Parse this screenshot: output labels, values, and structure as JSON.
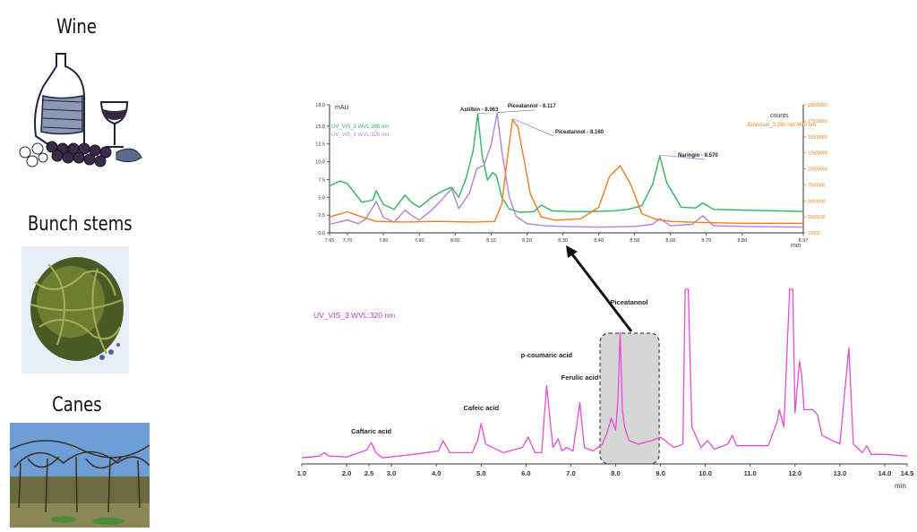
{
  "samples": [
    {
      "label": "Wine",
      "icon": "wine-bottle-illustration"
    },
    {
      "label": "Bunch stems",
      "icon": "grape-stems-photo"
    },
    {
      "label": "Canes",
      "icon": "vineyard-canes-photo"
    }
  ],
  "colors": {
    "uv280": "#2db55d",
    "uv320": "#b77fdc",
    "emission": "#f07c1d",
    "main": "#e64bd8",
    "highlight_box": "#d6d6d6",
    "arrow": "#111111"
  },
  "chart_data": [
    {
      "type": "line",
      "title": "",
      "xlabel": "min",
      "ylabel": "mAU",
      "y2label": "counts",
      "xlim": [
        7.65,
        8.97
      ],
      "ylim": [
        0.0,
        18.0
      ],
      "y2lim": [
        10000,
        20000000
      ],
      "x_ticks": [
        "7.65",
        "7.70",
        "7.80",
        "7.90",
        "8.00",
        "8.10",
        "8.20",
        "8.30",
        "8.40",
        "8.50",
        "8.60",
        "8.70",
        "8.80",
        "8.97"
      ],
      "y_ticks": [
        "0.0",
        "2.5",
        "5.0",
        "7.5",
        "10.0",
        "12.5",
        "15.0",
        "18.0"
      ],
      "y2_ticks": [
        "10000",
        "2500000",
        "5000000",
        "7500000",
        "10000000",
        "12500000",
        "15000000",
        "17500000",
        "20000000"
      ],
      "series": [
        {
          "name": "UV_VIS_3 WVL:280 nm",
          "axis": "left",
          "x": [
            7.65,
            7.68,
            7.7,
            7.74,
            7.77,
            7.78,
            7.8,
            7.83,
            7.86,
            7.88,
            7.9,
            7.94,
            7.97,
            7.99,
            8.01,
            8.03,
            8.05,
            8.063,
            8.075,
            8.09,
            8.105,
            8.115,
            8.13,
            8.15,
            8.18,
            8.22,
            8.24,
            8.27,
            8.32,
            8.38,
            8.44,
            8.48,
            8.52,
            8.55,
            8.57,
            8.59,
            8.63,
            8.67,
            8.69,
            8.72,
            8.8,
            8.9,
            8.97
          ],
          "y": [
            6.6,
            7.3,
            6.9,
            4.3,
            4.6,
            5.9,
            4.0,
            3.3,
            5.3,
            4.2,
            3.6,
            5.2,
            6.0,
            6.4,
            5.0,
            7.6,
            11.5,
            16.7,
            11.0,
            7.4,
            8.5,
            8.0,
            5.0,
            3.4,
            2.9,
            3.0,
            3.9,
            3.1,
            3.0,
            3.0,
            3.1,
            3.3,
            3.8,
            6.8,
            10.8,
            7.0,
            3.6,
            3.5,
            4.2,
            3.3,
            3.2,
            3.1,
            3.0
          ]
        },
        {
          "name": "UV_VIS_3 WVL:320 nm",
          "axis": "left",
          "x": [
            7.65,
            7.7,
            7.73,
            7.75,
            7.78,
            7.8,
            7.83,
            7.86,
            7.88,
            7.9,
            7.93,
            7.96,
            7.99,
            8.01,
            8.04,
            8.06,
            8.08,
            8.1,
            8.117,
            8.13,
            8.15,
            8.17,
            8.2,
            8.25,
            8.3,
            8.4,
            8.5,
            8.55,
            8.57,
            8.6,
            8.66,
            8.69,
            8.72,
            8.8,
            8.97
          ],
          "y": [
            1.2,
            1.8,
            1.3,
            1.9,
            4.4,
            2.2,
            1.5,
            3.2,
            2.4,
            1.8,
            3.0,
            4.5,
            6.2,
            3.4,
            5.6,
            9.0,
            9.5,
            12.3,
            16.8,
            11.5,
            5.2,
            2.3,
            1.3,
            1.0,
            0.9,
            0.8,
            0.9,
            1.2,
            2.0,
            1.0,
            1.2,
            2.4,
            1.0,
            0.9,
            0.8
          ]
        },
        {
          "name": "Emission_3 280 nm /400 nm",
          "axis": "right",
          "x": [
            7.65,
            7.7,
            7.73,
            7.78,
            7.85,
            7.95,
            8.05,
            8.11,
            8.13,
            8.145,
            8.16,
            8.175,
            8.19,
            8.21,
            8.24,
            8.28,
            8.35,
            8.4,
            8.43,
            8.46,
            8.49,
            8.52,
            8.56,
            8.6,
            8.7,
            8.8,
            8.97
          ],
          "y": [
            2500000,
            3300000,
            2700000,
            1800000,
            1700000,
            1800000,
            1700000,
            1800000,
            4500000,
            11500000,
            17700000,
            16500000,
            12000000,
            6000000,
            2500000,
            2000000,
            2200000,
            4000000,
            8800000,
            10500000,
            7500000,
            3000000,
            2100000,
            1800000,
            1600000,
            1500000,
            1500000
          ]
        }
      ],
      "annotations": [
        {
          "text": "Astilbin - 8.063",
          "x": 8.063
        },
        {
          "text": "Piceatannol - 8.117",
          "x": 8.117
        },
        {
          "text": "Piceatannol - 8.160",
          "x": 8.16
        },
        {
          "text": "Naringin - 8.570",
          "x": 8.57
        }
      ]
    },
    {
      "type": "line",
      "title": "",
      "xlabel": "min",
      "ylabel": "",
      "xlim": [
        1.0,
        14.5
      ],
      "x_ticks": [
        "1.0",
        "2.0",
        "2.5",
        "3.0",
        "4.0",
        "5.0",
        "6.0",
        "7.0",
        "8.0",
        "9.0",
        "10.0",
        "11.0",
        "12.0",
        "13.0",
        "14.0",
        "14.5"
      ],
      "series": [
        {
          "name": "UV_VIS_3 WVL:320 nm",
          "x": [
            1.0,
            1.4,
            1.5,
            1.6,
            2.0,
            2.45,
            2.55,
            2.65,
            2.8,
            3.5,
            4.05,
            4.15,
            4.3,
            4.8,
            4.92,
            5.0,
            5.1,
            5.5,
            5.92,
            6.05,
            6.2,
            6.35,
            6.46,
            6.6,
            6.72,
            6.8,
            6.9,
            7.05,
            7.2,
            7.3,
            7.5,
            7.7,
            7.8,
            7.9,
            8.0,
            8.05,
            8.1,
            8.15,
            8.2,
            8.3,
            8.5,
            8.8,
            9.0,
            9.3,
            9.5,
            9.55,
            9.62,
            9.7,
            9.9,
            10.05,
            10.2,
            10.5,
            10.6,
            10.7,
            11.2,
            11.4,
            11.6,
            11.65,
            11.75,
            11.88,
            11.95,
            12.0,
            12.1,
            12.15,
            12.2,
            12.3,
            12.4,
            12.5,
            12.6,
            13.0,
            13.2,
            13.3,
            13.5,
            13.6,
            13.7,
            14.0,
            14.5
          ],
          "y": [
            2.0,
            3.0,
            5.0,
            3.0,
            2.5,
            6.5,
            11.0,
            5.0,
            2.0,
            4.0,
            6.0,
            12.0,
            5.0,
            5.0,
            12.0,
            22.0,
            10.0,
            5.0,
            8.0,
            14.0,
            5.0,
            5.0,
            44.0,
            8.0,
            13.0,
            6.0,
            8.0,
            6.0,
            34.0,
            8.0,
            6.0,
            10.0,
            16.0,
            25.0,
            18.0,
            35.0,
            75.0,
            30.0,
            20.0,
            12.0,
            10.0,
            12.0,
            14.0,
            8.0,
            10.0,
            100.0,
            100.0,
            20.0,
            8.0,
            12.0,
            7.0,
            10.0,
            15.0,
            9.0,
            9.0,
            9.0,
            23.0,
            30.0,
            20.0,
            100.0,
            100.0,
            28.0,
            58.0,
            50.0,
            30.0,
            30.0,
            30.0,
            27.0,
            15.0,
            10.0,
            66.0,
            10.0,
            5.0,
            9.0,
            4.0,
            4.0,
            3.0
          ]
        }
      ],
      "peak_labels": [
        {
          "text": "Caftaric acid",
          "x": 2.55
        },
        {
          "text": "Cafeic acid",
          "x": 5.0
        },
        {
          "text": "p-coumaric acid",
          "x": 6.46
        },
        {
          "text": "Ferulic acid",
          "x": 7.2
        },
        {
          "text": "Piceatannol",
          "x": 8.1
        }
      ],
      "highlight": {
        "x_from": 7.65,
        "x_to": 8.97
      }
    }
  ]
}
